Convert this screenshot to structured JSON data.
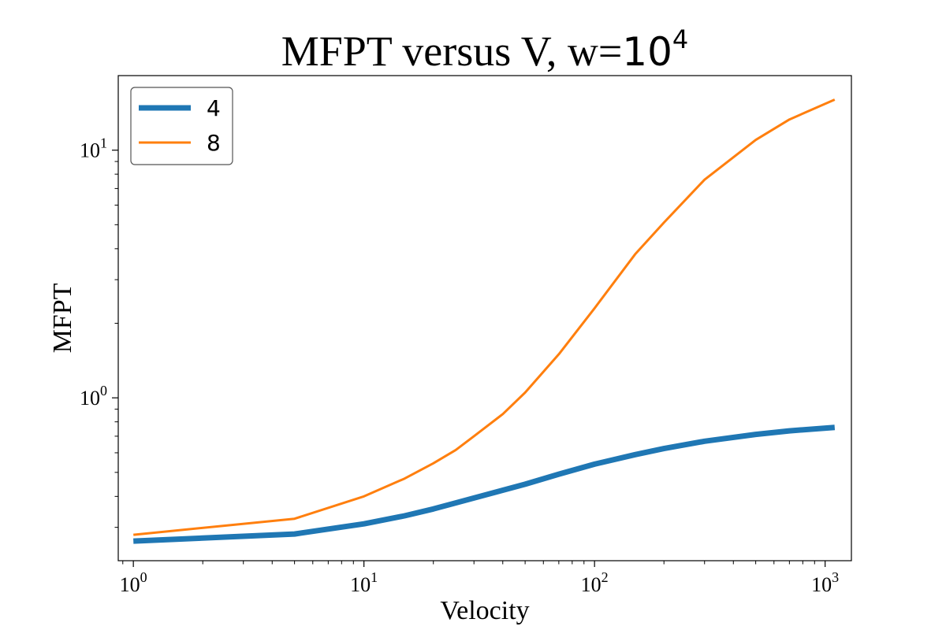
{
  "chart_data": {
    "type": "line",
    "title": "MFPT versus V, w=",
    "title_exponent_base": "10",
    "title_exponent": "4",
    "xlabel": "Velocity",
    "ylabel": "MFPT",
    "xscale": "log",
    "yscale": "log",
    "xlim": [
      0.86,
      1300
    ],
    "ylim": [
      0.22,
      20
    ],
    "x_ticks": [
      {
        "base": "10",
        "exp": "0",
        "value": 1
      },
      {
        "base": "10",
        "exp": "1",
        "value": 10
      },
      {
        "base": "10",
        "exp": "2",
        "value": 100
      },
      {
        "base": "10",
        "exp": "3",
        "value": 1000
      }
    ],
    "y_ticks": [
      {
        "base": "10",
        "exp": "0",
        "value": 1
      },
      {
        "base": "10",
        "exp": "1",
        "value": 10
      }
    ],
    "grid": false,
    "legend_position": "upper-left",
    "series": [
      {
        "name": "4",
        "color": "#1f77b4",
        "line_width": "thick",
        "x": [
          1,
          5,
          10,
          15,
          20,
          30,
          50,
          70,
          100,
          150,
          200,
          300,
          500,
          700,
          1100
        ],
        "y": [
          0.264,
          0.282,
          0.31,
          0.334,
          0.356,
          0.394,
          0.448,
          0.492,
          0.54,
          0.59,
          0.624,
          0.668,
          0.712,
          0.736,
          0.76
        ]
      },
      {
        "name": "8",
        "color": "#ff7f0e",
        "line_width": "thin",
        "x": [
          1,
          5,
          10,
          15,
          20,
          25,
          30,
          40,
          50,
          70,
          100,
          150,
          200,
          300,
          500,
          700,
          1100
        ],
        "y": [
          0.28,
          0.325,
          0.4,
          0.472,
          0.544,
          0.616,
          0.7,
          0.86,
          1.05,
          1.5,
          2.3,
          3.8,
          5.1,
          7.6,
          11.0,
          13.3,
          16.0
        ]
      }
    ]
  }
}
